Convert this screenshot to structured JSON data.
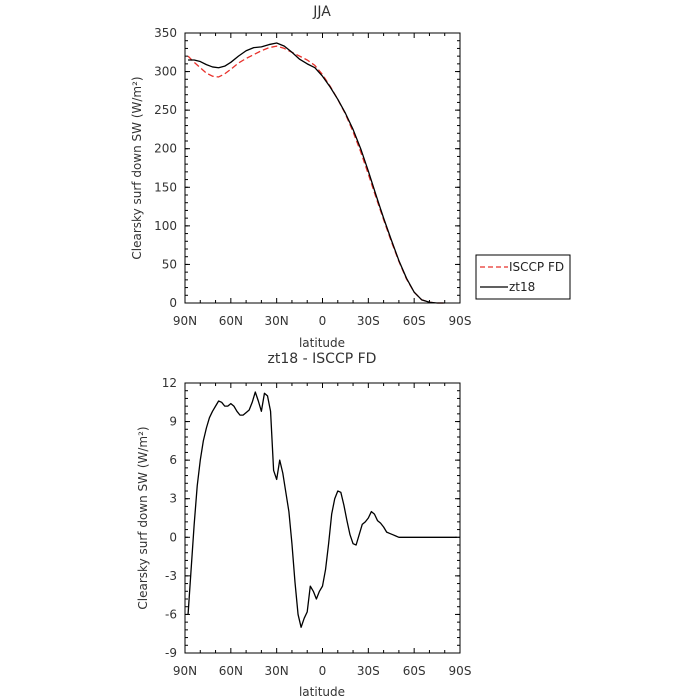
{
  "chart_data": [
    {
      "type": "line",
      "title": "JJA",
      "xlabel": "latitude",
      "ylabel": "Clearsky surf down SW (W/m²)",
      "xlim": [
        90,
        -90
      ],
      "ylim": [
        0,
        350
      ],
      "x_ticks": [
        90,
        60,
        30,
        0,
        -30,
        -60,
        -90
      ],
      "x_tick_labels": [
        "90N",
        "60N",
        "30N",
        "0",
        "30S",
        "60S",
        "90S"
      ],
      "y_ticks": [
        0,
        50,
        100,
        150,
        200,
        250,
        300,
        350
      ],
      "y_tick_labels": [
        "0",
        "50",
        "100",
        "150",
        "200",
        "250",
        "300",
        "350"
      ],
      "legend": {
        "placement": "right-bottom-outside"
      },
      "series": [
        {
          "name": "ISCCP FD",
          "color": "#e8312b",
          "dash": "dashed",
          "x": [
            88,
            84,
            80,
            76,
            72,
            68,
            64,
            60,
            55,
            50,
            45,
            40,
            35,
            30,
            25,
            20,
            15,
            10,
            5,
            0,
            -5,
            -10,
            -15,
            -20,
            -25,
            -30,
            -35,
            -40,
            -45,
            -50,
            -55,
            -60,
            -65,
            -70,
            -75,
            -80
          ],
          "y": [
            320,
            312,
            305,
            298,
            294,
            293,
            297,
            303,
            311,
            317,
            322,
            327,
            331,
            333,
            330,
            325,
            320,
            315,
            308,
            296,
            281,
            264,
            245,
            222,
            196,
            167,
            137,
            108,
            80,
            54,
            31,
            14,
            4,
            1,
            0,
            0
          ]
        },
        {
          "name": "zt18",
          "color": "#000000",
          "dash": "solid",
          "x": [
            88,
            84,
            80,
            76,
            72,
            68,
            64,
            60,
            55,
            50,
            45,
            40,
            35,
            30,
            25,
            20,
            15,
            10,
            5,
            0,
            -5,
            -10,
            -15,
            -20,
            -25,
            -30,
            -35,
            -40,
            -45,
            -50,
            -55,
            -60,
            -65,
            -70,
            -75,
            -80
          ],
          "y": [
            315,
            315,
            313,
            309,
            306,
            305,
            307,
            312,
            320,
            327,
            331,
            332,
            335,
            337,
            333,
            325,
            316,
            310,
            305,
            294,
            280,
            264,
            246,
            225,
            200,
            171,
            140,
            110,
            82,
            55,
            32,
            14,
            4,
            1,
            0,
            0
          ]
        }
      ]
    },
    {
      "type": "line",
      "title": "zt18 - ISCCP FD",
      "xlabel": "latitude",
      "ylabel": "Clearsky surf down SW (W/m²)",
      "xlim": [
        90,
        -90
      ],
      "ylim": [
        -9,
        12
      ],
      "x_ticks": [
        90,
        60,
        30,
        0,
        -30,
        -60,
        -90
      ],
      "x_tick_labels": [
        "90N",
        "60N",
        "30N",
        "0",
        "30S",
        "60S",
        "90S"
      ],
      "y_ticks": [
        -9,
        -6,
        -3,
        0,
        3,
        6,
        9,
        12
      ],
      "y_tick_labels": [
        "-9",
        "-6",
        "-3",
        "0",
        "3",
        "6",
        "9",
        "12"
      ],
      "series": [
        {
          "color": "#000000",
          "dash": "solid",
          "x": [
            88,
            86,
            84,
            82,
            80,
            78,
            76,
            74,
            72,
            70,
            68,
            66,
            64,
            62,
            60,
            58,
            56,
            54,
            52,
            50,
            48,
            46,
            44,
            42,
            40,
            38,
            36,
            34,
            32,
            30,
            28,
            26,
            24,
            22,
            20,
            18,
            16,
            14,
            12,
            10,
            8,
            6,
            4,
            2,
            0,
            -2,
            -4,
            -6,
            -8,
            -10,
            -12,
            -14,
            -16,
            -18,
            -20,
            -22,
            -24,
            -26,
            -28,
            -30,
            -32,
            -34,
            -36,
            -38,
            -40,
            -42,
            -44,
            -46,
            -48,
            -50,
            -52,
            -54,
            -56,
            -58,
            -60,
            -62,
            -64,
            -66,
            -68,
            -70,
            -72,
            -74,
            -76,
            -78,
            -80,
            -82,
            -84,
            -86,
            -88
          ],
          "y": [
            -6.0,
            -2.5,
            1.0,
            4.0,
            6.0,
            7.5,
            8.5,
            9.3,
            9.8,
            10.2,
            10.6,
            10.5,
            10.2,
            10.2,
            10.4,
            10.2,
            9.8,
            9.5,
            9.5,
            9.7,
            9.9,
            10.5,
            11.3,
            10.6,
            9.8,
            11.2,
            11.0,
            9.8,
            5.2,
            4.5,
            6.0,
            5.0,
            3.5,
            2.0,
            -0.5,
            -3.5,
            -6.0,
            -7.0,
            -6.3,
            -5.8,
            -3.8,
            -4.2,
            -4.8,
            -4.2,
            -3.8,
            -2.5,
            -0.5,
            1.8,
            3.0,
            3.6,
            3.5,
            2.5,
            1.3,
            0.2,
            -0.5,
            -0.6,
            0.2,
            1.0,
            1.2,
            1.5,
            2.0,
            1.8,
            1.3,
            1.1,
            0.8,
            0.4,
            0.3,
            0.2,
            0.1,
            0.0,
            0.0,
            0.0,
            0.0,
            0.0,
            0.0,
            0.0,
            0.0,
            0.0,
            0.0,
            0.0,
            0.0,
            0.0,
            0.0,
            0.0,
            0.0,
            0.0,
            0.0,
            0.0,
            0.0
          ]
        }
      ]
    }
  ]
}
